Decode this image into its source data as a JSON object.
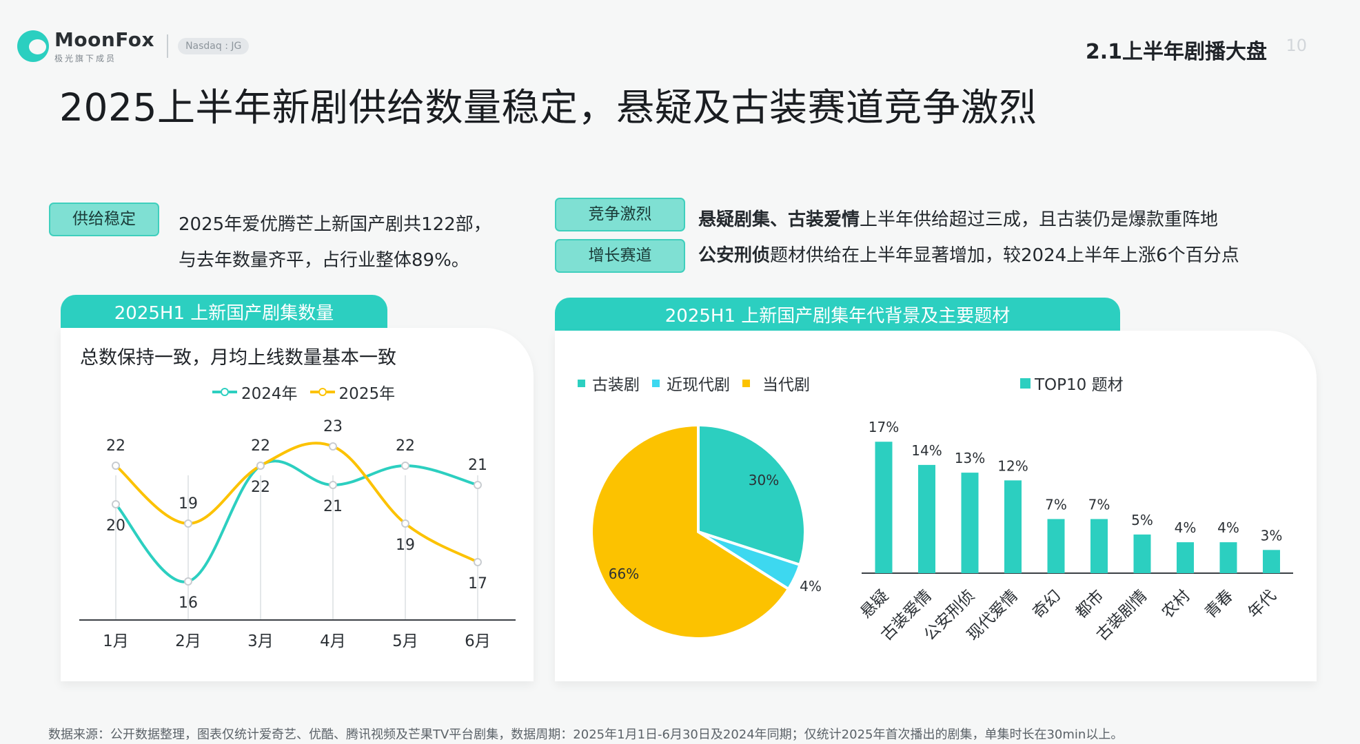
{
  "header": {
    "logo_name": "MoonFox",
    "logo_sub": "极光旗下成员",
    "badge": "Nasdaq : JG",
    "section_title": "2.1上半年剧播大盘",
    "page_number": "10"
  },
  "title": "2025上半年新剧供给数量稳定，悬疑及古装赛道竞争激烈",
  "left_block": {
    "tag": "供给稳定",
    "line1": "2025年爱优腾芒上新国产剧共122部，",
    "line2": "与去年数量齐平，占行业整体89%。"
  },
  "right_block": {
    "tag1": "竞争激烈",
    "line1_bold": "悬疑剧集、古装爱情",
    "line1_rest": "上半年供给超过三成，且古装仍是爆款重阵地",
    "tag2": "增长赛道",
    "line2_bold": "公安刑侦",
    "line2_rest": "题材供给在上半年显著增加，较2024上半年上涨6个百分点"
  },
  "left_panel": {
    "tab": "2025H1  上新国产剧集数量",
    "subtitle": "总数保持一致，月均上线数量基本一致"
  },
  "right_panel": {
    "tab": "2025H1  上新国产剧集年代背景及主要题材"
  },
  "colors": {
    "teal": "#2ccfc0",
    "yellow": "#fcc200",
    "cyan": "#3dd8f0"
  },
  "chart_data": [
    {
      "type": "line",
      "x": [
        "1月",
        "2月",
        "3月",
        "4月",
        "5月",
        "6月"
      ],
      "series": [
        {
          "name": "2024年",
          "values": [
            20,
            16,
            22,
            21,
            22,
            21
          ],
          "color": "#2ccfc0"
        },
        {
          "name": "2025年",
          "values": [
            22,
            19,
            22,
            23,
            19,
            17
          ],
          "color": "#fcc200"
        }
      ],
      "ylim": [
        14,
        24
      ]
    },
    {
      "type": "pie",
      "labels": [
        "古装剧",
        "近现代剧",
        "当代剧"
      ],
      "values": [
        30,
        4,
        66
      ],
      "value_labels": [
        "30%",
        "4%",
        "66%"
      ],
      "colors": [
        "#2ccfc0",
        "#3dd8f0",
        "#fcc200"
      ]
    },
    {
      "type": "bar",
      "legend": "TOP10 题材",
      "categories": [
        "悬疑",
        "古装爱情",
        "公安刑侦",
        "现代爱情",
        "奇幻",
        "都市",
        "古装剧情",
        "农村",
        "青春",
        "年代"
      ],
      "values": [
        17,
        14,
        13,
        12,
        7,
        7,
        5,
        4,
        4,
        3
      ],
      "value_labels": [
        "17%",
        "14%",
        "13%",
        "12%",
        "7%",
        "7%",
        "5%",
        "4%",
        "4%",
        "3%"
      ],
      "ylim": [
        0,
        18
      ],
      "color": "#2ccfc0"
    }
  ],
  "footnote": "数据来源：公开数据整理，图表仅统计爱奇艺、优酷、腾讯视频及芒果TV平台剧集，数据周期：2025年1月1日-6月30日及2024年同期；仅统计2025年首次播出的剧集，单集时长在30min以上。"
}
